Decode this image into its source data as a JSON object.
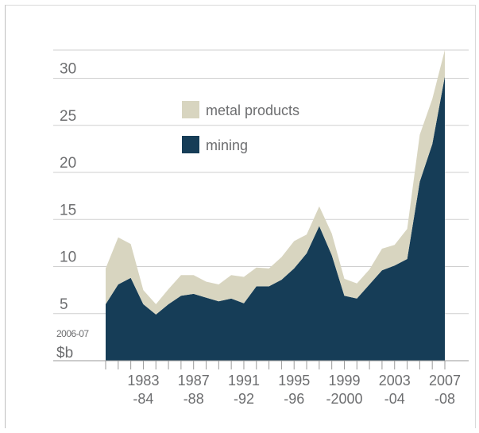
{
  "chart_data": {
    "type": "area",
    "stacked": true,
    "title": "",
    "xlabel": "",
    "ylabel": "",
    "unit_labels": [
      "2006-07",
      "$b"
    ],
    "ylim": [
      0,
      33
    ],
    "yticks": [
      5,
      10,
      15,
      20,
      25,
      30
    ],
    "grid": true,
    "legend_position": "upper-left",
    "x_labels": [
      {
        "x": 1983.5,
        "lines": [
          "1983",
          "-84"
        ]
      },
      {
        "x": 1987.5,
        "lines": [
          "1987",
          "-88"
        ]
      },
      {
        "x": 1991.5,
        "lines": [
          "1991",
          "-92"
        ]
      },
      {
        "x": 1995.5,
        "lines": [
          "1995",
          "-96"
        ]
      },
      {
        "x": 1999.5,
        "lines": [
          "1999",
          "-2000"
        ]
      },
      {
        "x": 2003.5,
        "lines": [
          "2003",
          "-04"
        ]
      },
      {
        "x": 2007.5,
        "lines": [
          "2007",
          "-08"
        ]
      }
    ],
    "x": [
      1980.5,
      1981.5,
      1982.5,
      1983.5,
      1984.5,
      1985.5,
      1986.5,
      1987.5,
      1988.5,
      1989.5,
      1990.5,
      1991.5,
      1992.5,
      1993.5,
      1994.5,
      1995.5,
      1996.5,
      1997.5,
      1998.5,
      1999.5,
      2000.5,
      2001.5,
      2002.5,
      2003.5,
      2004.5,
      2005.5,
      2006.5,
      2007.5
    ],
    "series": [
      {
        "name": "mining",
        "color": "#163d57",
        "values": [
          6.0,
          8.1,
          8.8,
          6.0,
          4.9,
          6.0,
          6.9,
          7.1,
          6.7,
          6.3,
          6.6,
          6.1,
          7.9,
          7.9,
          8.6,
          9.8,
          11.4,
          14.3,
          11.2,
          6.9,
          6.6,
          8.1,
          9.6,
          10.1,
          10.8,
          19.0,
          23.0,
          30.2
        ]
      },
      {
        "name": "metal products",
        "color": "#d8d5c0",
        "values": [
          3.8,
          5.0,
          3.6,
          1.5,
          1.1,
          1.6,
          2.2,
          2.0,
          1.7,
          1.8,
          2.5,
          2.8,
          2.0,
          1.9,
          2.4,
          2.9,
          2.0,
          2.1,
          2.3,
          1.8,
          1.6,
          1.6,
          2.3,
          2.2,
          3.2,
          5.0,
          4.8,
          2.8
        ]
      }
    ]
  }
}
